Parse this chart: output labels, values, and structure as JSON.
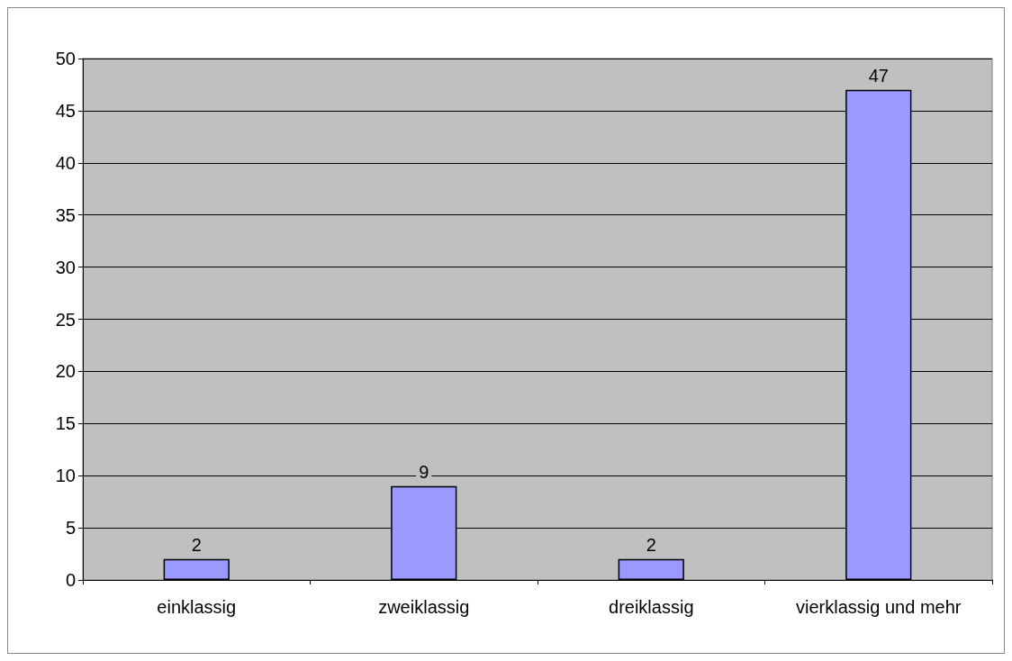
{
  "chart_data": {
    "type": "bar",
    "categories": [
      "einklassig",
      "zweiklassig",
      "dreiklassig",
      "vierklassig und mehr"
    ],
    "values": [
      2,
      9,
      2,
      47
    ],
    "color": "#9999ff",
    "ylim": [
      0,
      50
    ],
    "yticks": [
      0,
      5,
      10,
      15,
      20,
      25,
      30,
      35,
      40,
      45,
      50
    ],
    "grid": "y",
    "data_labels": true
  }
}
